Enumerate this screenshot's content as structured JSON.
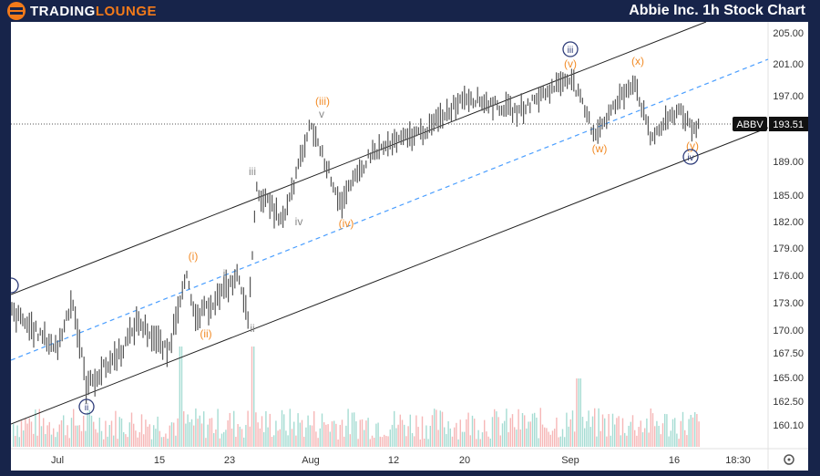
{
  "header": {
    "logo_part1": "TRADING",
    "logo_part2": "LOUNGE",
    "title": "Abbie Inc. 1h Stock Chart"
  },
  "colors": {
    "header_bg": "#17244a",
    "accent": "#f27a1a",
    "wave_orange": "#f28c28",
    "wave_gray": "#888888",
    "circle_navy": "#2f3d7a",
    "midline": "#4a9eff",
    "volume_up": "#a6dcd3",
    "volume_down": "#f6b7b7"
  },
  "chart_data": {
    "type": "ohlc",
    "ticker": "ABBV",
    "last_price": "193.51",
    "y_ticks": [
      "205.00",
      "201.00",
      "197.00",
      "189.00",
      "185.00",
      "182.00",
      "179.00",
      "176.00",
      "173.00",
      "170.00",
      "167.50",
      "165.00",
      "162.50",
      "160.10"
    ],
    "x_ticks": [
      "Jul",
      "15",
      "23",
      "Aug",
      "12",
      "20",
      "Sep",
      "16",
      "18:30"
    ],
    "price_path": [
      [
        "2024-06-26",
        172
      ],
      [
        "2024-07-01",
        168
      ],
      [
        "2024-07-03",
        173.5
      ],
      [
        "2024-07-05",
        164
      ],
      [
        "2024-07-10",
        168
      ],
      [
        "2024-07-12",
        171
      ],
      [
        "2024-07-16",
        167.5
      ],
      [
        "2024-07-18",
        176.5
      ],
      [
        "2024-07-19",
        171
      ],
      [
        "2024-07-24",
        176
      ],
      [
        "2024-07-25",
        171
      ],
      [
        "2024-07-26",
        185.5
      ],
      [
        "2024-07-29",
        182
      ],
      [
        "2024-08-01",
        193.5
      ],
      [
        "2024-08-05",
        184
      ],
      [
        "2024-08-09",
        190
      ],
      [
        "2024-08-16",
        193
      ],
      [
        "2024-08-20",
        197
      ],
      [
        "2024-08-27",
        195
      ],
      [
        "2024-09-03",
        199.5
      ],
      [
        "2024-09-06",
        192.3
      ],
      [
        "2024-09-11",
        199
      ],
      [
        "2024-09-13",
        191.8
      ],
      [
        "2024-09-17",
        195.5
      ],
      [
        "2024-09-19",
        192.3
      ],
      [
        "2024-09-20",
        193.5
      ]
    ],
    "wave_labels": {
      "orange": [
        "(i)",
        "(ii)",
        "(iii)",
        "(iv)",
        "(v)",
        "(w)",
        "(x)",
        "(y)"
      ],
      "gray": [
        "i",
        "ii",
        "iii",
        "iv",
        "v"
      ],
      "circled": [
        "ii",
        "iii",
        "iv"
      ]
    },
    "channel": "parallel ascending channel with dashed midline",
    "settings_icon": "gear-icon"
  }
}
